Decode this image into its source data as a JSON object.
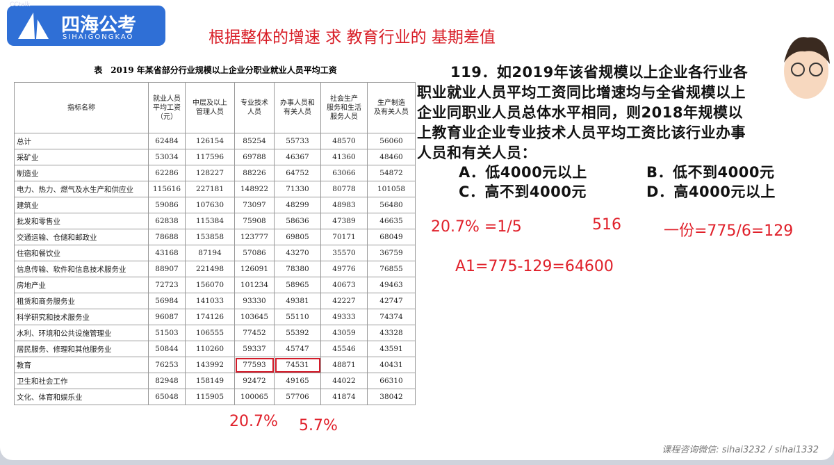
{
  "logo": {
    "watermark": "CCtalk",
    "name": "四海公考",
    "pinyin": "SIHAIGONGKAO"
  },
  "heading": "根据整体的增速 求  教育行业的 基期差值",
  "table": {
    "caption": "表　2019 年某省部分行业规模以上企业分职业就业人员平均工资",
    "columns": [
      "指标名称",
      "就业人员\n平均工资\n（元）",
      "中层及以上\n管理人员",
      "专业技术\n人员",
      "办事人员和\n有关人员",
      "社会生产\n服务和生活\n服务人员",
      "生产制造\n及有关人员"
    ],
    "rows": [
      [
        "总计",
        62484,
        126154,
        85254,
        55733,
        48570,
        56060
      ],
      [
        "采矿业",
        53034,
        117596,
        69788,
        46367,
        41360,
        48460
      ],
      [
        "制造业",
        62286,
        128227,
        88226,
        64752,
        63066,
        54872
      ],
      [
        "电力、热力、燃气及水生产和供应业",
        115616,
        227181,
        148922,
        71330,
        80778,
        101058
      ],
      [
        "建筑业",
        59086,
        107630,
        73097,
        48299,
        48983,
        56480
      ],
      [
        "批发和零售业",
        62838,
        115384,
        75908,
        58636,
        47389,
        46635
      ],
      [
        "交通运输、仓储和邮政业",
        78688,
        153858,
        123777,
        69805,
        70171,
        68049
      ],
      [
        "住宿和餐饮业",
        43168,
        87194,
        57086,
        43270,
        35570,
        36759
      ],
      [
        "信息传输、软件和信息技术服务业",
        88907,
        221498,
        126091,
        78380,
        49776,
        76855
      ],
      [
        "房地产业",
        72723,
        156070,
        101234,
        58965,
        40673,
        49463
      ],
      [
        "租赁和商务服务业",
        56984,
        141033,
        93330,
        49381,
        42227,
        42747
      ],
      [
        "科学研究和技术服务业",
        96087,
        174126,
        103645,
        55110,
        49333,
        74374
      ],
      [
        "水利、环境和公共设施管理业",
        51503,
        106555,
        77452,
        55392,
        43059,
        43328
      ],
      [
        "居民服务、修理和其他服务业",
        50844,
        110260,
        59337,
        45747,
        45546,
        43591
      ],
      [
        "教育",
        76253,
        143992,
        77593,
        74531,
        48871,
        40431
      ],
      [
        "卫生和社会工作",
        82948,
        158149,
        92472,
        49165,
        44022,
        66310
      ],
      [
        "文化、体育和娱乐业",
        65048,
        115905,
        100065,
        57706,
        41874,
        38042
      ]
    ]
  },
  "question": {
    "lines": [
      "119．如2019年该省规模以上企业各行业各",
      "职业就业人员平均工资同比增速均与全省规模以上",
      "企业同职业人员总体水平相同，则2018年规模以",
      "上教育业企业专业技术人员平均工资比该行业办事",
      "人员和有关人员："
    ],
    "options": [
      "A．低4000元以上",
      "B．低不到4000元",
      "C．高不到4000元",
      "D．高4000元以上"
    ]
  },
  "annotations": [
    "20.7% =1/5",
    "516",
    "一份=775/6=129",
    "A1=775-129=64600",
    "20.7%",
    "5.7%"
  ],
  "footer": "课程咨询微信: sihai3232 / sihai1332"
}
